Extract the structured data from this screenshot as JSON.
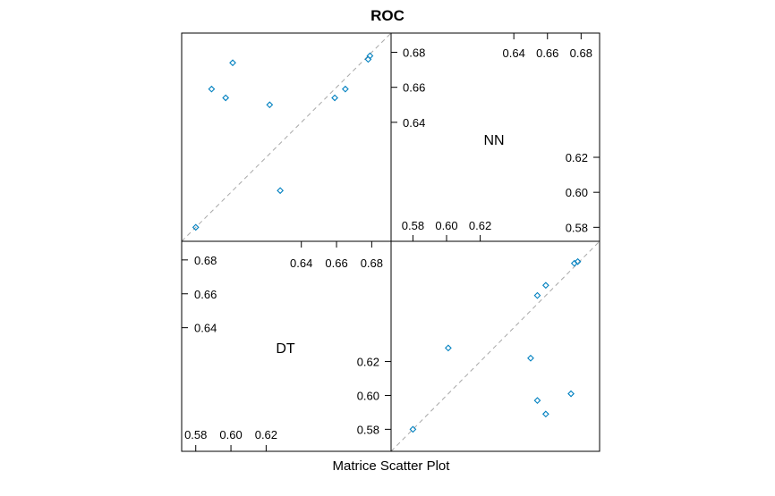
{
  "chart_data": {
    "type": "scatter",
    "subtype": "scatter-plot-matrix",
    "title": "ROC",
    "xlabel": "Matrice Scatter Plot",
    "variables": [
      "NN",
      "DT"
    ],
    "point_color": "#0080C0",
    "reference_line": "y = x (dashed, gray)",
    "grid": false,
    "panels": {
      "NN": {
        "range": [
          0.572,
          0.691
        ],
        "upper_ticks": [
          "0.64",
          "0.66",
          "0.68"
        ],
        "lower_ticks": [
          "0.58",
          "0.60",
          "0.62"
        ]
      },
      "DT": {
        "range": [
          0.567,
          0.691
        ],
        "upper_ticks": [
          "0.64",
          "0.66",
          "0.68"
        ],
        "lower_ticks": [
          "0.58",
          "0.60",
          "0.62"
        ]
      }
    },
    "points": [
      {
        "nn": 0.58,
        "dt": 0.58
      },
      {
        "nn": 0.601,
        "dt": 0.628
      },
      {
        "nn": 0.65,
        "dt": 0.622
      },
      {
        "nn": 0.654,
        "dt": 0.597
      },
      {
        "nn": 0.659,
        "dt": 0.589
      },
      {
        "nn": 0.654,
        "dt": 0.659
      },
      {
        "nn": 0.659,
        "dt": 0.665
      },
      {
        "nn": 0.674,
        "dt": 0.601
      },
      {
        "nn": 0.676,
        "dt": 0.678
      },
      {
        "nn": 0.678,
        "dt": 0.679
      }
    ]
  }
}
